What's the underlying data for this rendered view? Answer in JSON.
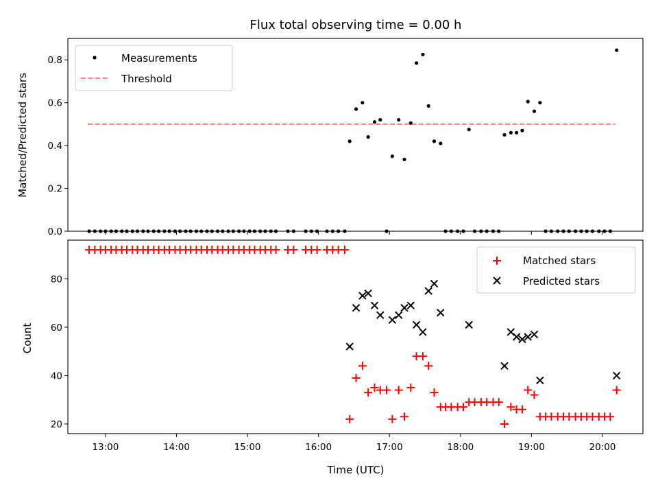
{
  "chart_data": [
    {
      "type": "scatter",
      "title": "Flux total observing time = 0.00 h",
      "xlabel": "",
      "ylabel": "Matched/Predicted stars",
      "xlim": [
        12.47,
        20.57
      ],
      "ylim": [
        0.0,
        0.9
      ],
      "yticks": [
        0.0,
        0.2,
        0.4,
        0.6,
        0.8
      ],
      "ytick_labels": [
        "0.0",
        "0.2",
        "0.4",
        "0.6",
        "0.8"
      ],
      "threshold": {
        "value": 0.5,
        "x_range": [
          12.75,
          20.18
        ],
        "color": "#ff7f7f"
      },
      "legend": {
        "position": "upper-left",
        "entries": [
          {
            "label": "Measurements",
            "marker": "dot"
          },
          {
            "label": "Threshold",
            "marker": "dashed-line"
          }
        ]
      },
      "series": [
        {
          "name": "Measurements",
          "color": "#000000",
          "x": [
            12.77,
            12.85,
            12.93,
            13.0,
            13.08,
            13.15,
            13.23,
            13.3,
            13.38,
            13.45,
            13.53,
            13.6,
            13.68,
            13.75,
            13.83,
            13.9,
            13.98,
            14.05,
            14.13,
            14.2,
            14.28,
            14.35,
            14.43,
            14.5,
            14.58,
            14.65,
            14.73,
            14.8,
            14.88,
            14.95,
            15.03,
            15.1,
            15.18,
            15.25,
            15.33,
            15.4,
            15.57,
            15.65,
            15.82,
            15.9,
            15.98,
            16.12,
            16.2,
            16.28,
            16.37,
            16.44,
            16.53,
            16.62,
            16.7,
            16.79,
            16.87,
            16.96,
            17.04,
            17.13,
            17.21,
            17.3,
            17.38,
            17.47,
            17.55,
            17.63,
            17.72,
            17.79,
            17.87,
            17.96,
            18.04,
            18.12,
            18.2,
            18.29,
            18.37,
            18.46,
            18.54,
            18.62,
            18.71,
            18.79,
            18.87,
            18.95,
            19.04,
            19.12,
            19.2,
            19.28,
            19.37,
            19.45,
            19.53,
            19.62,
            19.7,
            19.78,
            19.86,
            19.95,
            20.03,
            20.11,
            20.2
          ],
          "y": [
            0,
            0,
            0,
            0,
            0,
            0,
            0,
            0,
            0,
            0,
            0,
            0,
            0,
            0,
            0,
            0,
            0,
            0,
            0,
            0,
            0,
            0,
            0,
            0,
            0,
            0,
            0,
            0,
            0,
            0,
            0,
            0,
            0,
            0,
            0,
            0,
            0,
            0,
            0,
            0,
            0,
            0,
            0,
            0,
            0,
            0.42,
            0.57,
            0.6,
            0.44,
            0.51,
            0.52,
            0,
            0.35,
            0.52,
            0.335,
            0.505,
            0.785,
            0.825,
            0.585,
            0.42,
            0.41,
            0,
            0,
            0,
            0,
            0.475,
            0,
            0,
            0,
            0,
            0,
            0.45,
            0.46,
            0.46,
            0.47,
            0.605,
            0.56,
            0.6,
            0,
            0,
            0,
            0,
            0,
            0,
            0,
            0,
            0,
            0,
            0,
            0,
            0.845
          ]
        }
      ]
    },
    {
      "type": "scatter",
      "title": "",
      "xlabel": "Time (UTC)",
      "ylabel": "Count",
      "xlim": [
        12.47,
        20.57
      ],
      "ylim": [
        16.0,
        96.0
      ],
      "xticks": [
        13,
        14,
        15,
        16,
        17,
        18,
        19,
        20
      ],
      "xtick_labels": [
        "13:00",
        "14:00",
        "15:00",
        "16:00",
        "17:00",
        "18:00",
        "19:00",
        "20:00"
      ],
      "yticks": [
        20,
        40,
        60,
        80
      ],
      "ytick_labels": [
        "20",
        "40",
        "60",
        "80"
      ],
      "legend": {
        "position": "upper-right",
        "entries": [
          {
            "label": "Matched stars",
            "marker": "plus"
          },
          {
            "label": "Predicted stars",
            "marker": "x"
          }
        ]
      },
      "series": [
        {
          "name": "Matched stars",
          "color": "#ff0000",
          "marker": "plus",
          "x": [
            12.77,
            12.85,
            12.93,
            13.0,
            13.08,
            13.15,
            13.23,
            13.3,
            13.38,
            13.45,
            13.53,
            13.6,
            13.68,
            13.75,
            13.83,
            13.9,
            13.98,
            14.05,
            14.13,
            14.2,
            14.28,
            14.35,
            14.43,
            14.5,
            14.58,
            14.65,
            14.73,
            14.8,
            14.88,
            14.95,
            15.03,
            15.1,
            15.18,
            15.25,
            15.33,
            15.4,
            15.57,
            15.65,
            15.82,
            15.9,
            15.98,
            16.12,
            16.2,
            16.28,
            16.37,
            16.44,
            16.53,
            16.62,
            16.7,
            16.79,
            16.87,
            16.96,
            17.04,
            17.13,
            17.21,
            17.3,
            17.38,
            17.47,
            17.55,
            17.63,
            17.72,
            17.79,
            17.87,
            17.96,
            18.04,
            18.12,
            18.2,
            18.29,
            18.37,
            18.46,
            18.54,
            18.62,
            18.71,
            18.79,
            18.87,
            18.95,
            19.04,
            19.12,
            19.2,
            19.28,
            19.37,
            19.45,
            19.53,
            19.62,
            19.7,
            19.78,
            19.86,
            19.95,
            20.03,
            20.11,
            20.2
          ],
          "y": [
            92,
            92,
            92,
            92,
            92,
            92,
            92,
            92,
            92,
            92,
            92,
            92,
            92,
            92,
            92,
            92,
            92,
            92,
            92,
            92,
            92,
            92,
            92,
            92,
            92,
            92,
            92,
            92,
            92,
            92,
            92,
            92,
            92,
            92,
            92,
            92,
            92,
            92,
            92,
            92,
            92,
            92,
            92,
            92,
            92,
            22,
            39,
            44,
            33,
            35,
            34,
            34,
            22,
            34,
            23,
            35,
            48,
            48,
            44,
            33,
            27,
            27,
            27,
            27,
            27,
            29,
            29,
            29,
            29,
            29,
            29,
            20,
            27,
            26,
            26,
            34,
            32,
            23,
            23,
            23,
            23,
            23,
            23,
            23,
            23,
            23,
            23,
            23,
            23,
            23,
            34
          ]
        },
        {
          "name": "Predicted stars",
          "color": "#000000",
          "marker": "x",
          "x": [
            16.44,
            16.53,
            16.62,
            16.7,
            16.79,
            16.87,
            17.04,
            17.13,
            17.21,
            17.3,
            17.38,
            17.47,
            17.55,
            17.63,
            17.72,
            18.12,
            18.62,
            18.71,
            18.79,
            18.87,
            18.95,
            19.04,
            19.12,
            20.2
          ],
          "y": [
            52,
            68,
            73,
            74,
            69,
            65,
            63,
            65,
            68,
            69,
            61,
            58,
            75,
            78,
            66,
            61,
            44,
            58,
            56,
            55,
            56,
            57,
            38,
            40
          ]
        }
      ]
    }
  ]
}
